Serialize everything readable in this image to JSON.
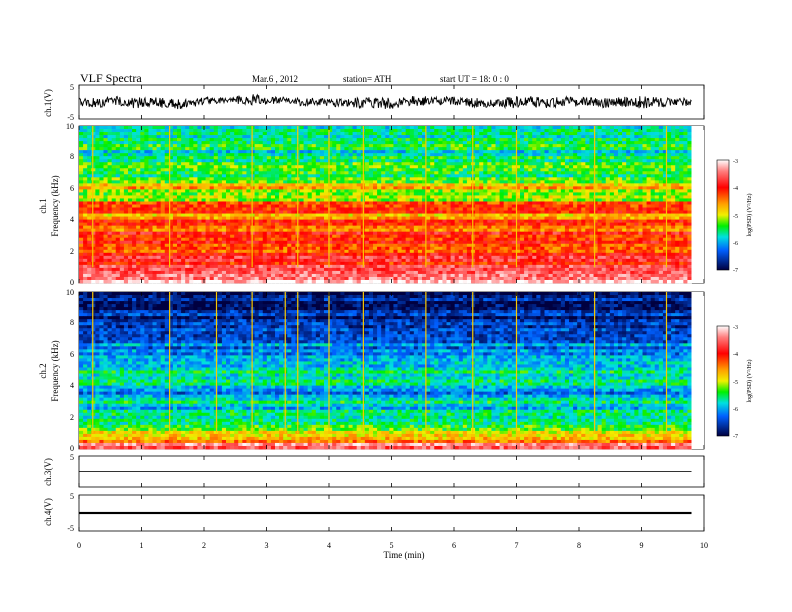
{
  "header": {
    "title": "VLF  Spectra",
    "date": "Mar.6  , 2012",
    "station": "station= ATH",
    "start": "start  UT  =    18: 0  : 0"
  },
  "chart_data": [
    {
      "type": "line",
      "panel": "ch1-waveform",
      "ylabel": "ch.1(V)",
      "ylim": [
        -5,
        5
      ],
      "yticks": [
        "5",
        "-5"
      ],
      "x_unit": "min",
      "xlim": [
        0,
        10
      ],
      "data_end": 9.8,
      "line_color": "#000000",
      "envelope_min_max": [
        [
          0.0,
          -1.2,
          1.4
        ],
        [
          0.3,
          -1.6,
          1.0
        ],
        [
          0.6,
          -1.0,
          1.6
        ],
        [
          0.9,
          -1.8,
          1.2
        ],
        [
          1.2,
          -1.2,
          1.3
        ],
        [
          1.5,
          -2.2,
          0.8
        ],
        [
          1.8,
          -1.6,
          0.6
        ],
        [
          2.1,
          -0.4,
          1.8
        ],
        [
          2.4,
          -0.2,
          1.2
        ],
        [
          2.7,
          -0.8,
          2.4
        ],
        [
          3.0,
          -0.6,
          1.6
        ],
        [
          3.3,
          -0.2,
          1.4
        ],
        [
          3.6,
          -1.2,
          1.0
        ],
        [
          3.9,
          -1.0,
          1.2
        ],
        [
          4.2,
          -1.4,
          0.8
        ],
        [
          4.5,
          -1.6,
          1.2
        ],
        [
          4.8,
          -2.0,
          1.6
        ],
        [
          5.1,
          -1.8,
          1.0
        ],
        [
          5.4,
          -1.2,
          1.8
        ],
        [
          5.7,
          -0.8,
          1.4
        ],
        [
          6.0,
          -1.0,
          1.6
        ],
        [
          6.3,
          -1.6,
          1.2
        ],
        [
          6.6,
          -1.4,
          1.0
        ],
        [
          6.9,
          -1.8,
          1.4
        ],
        [
          7.2,
          -1.2,
          1.6
        ],
        [
          7.5,
          -1.6,
          1.2
        ],
        [
          7.8,
          -1.4,
          1.4
        ],
        [
          8.1,
          -1.0,
          1.2
        ],
        [
          8.4,
          -1.6,
          1.0
        ],
        [
          8.7,
          -1.2,
          1.4
        ],
        [
          9.0,
          -1.8,
          1.6
        ],
        [
          9.3,
          -1.4,
          1.2
        ],
        [
          9.6,
          -1.0,
          1.0
        ],
        [
          9.8,
          -1.2,
          1.1
        ]
      ]
    },
    {
      "type": "heatmap",
      "panel": "ch1-spectrogram",
      "ylabel": "ch.1",
      "ylabel2": "Frequency  (kHz)",
      "xlabel": "",
      "x_unit": "min",
      "xlim": [
        0,
        10
      ],
      "data_end": 9.8,
      "ylim": [
        0,
        10
      ],
      "yticks": [
        "0",
        "2",
        "4",
        "6",
        "8",
        "10"
      ],
      "colorbar": {
        "label": "log(PSD) (V²/Hz)",
        "range": [
          -7,
          -3
        ],
        "ticks": [
          "-3",
          "-4",
          "-5",
          "-6",
          "-7"
        ]
      },
      "band_levels_logpsd_by_khz": [
        [
          0.2,
          -3.3
        ],
        [
          0.6,
          -3.4
        ],
        [
          1.0,
          -3.6
        ],
        [
          1.4,
          -4.0
        ],
        [
          1.8,
          -3.8
        ],
        [
          2.2,
          -4.3
        ],
        [
          2.6,
          -4.1
        ],
        [
          3.0,
          -4.0
        ],
        [
          3.4,
          -4.3
        ],
        [
          3.8,
          -4.2
        ],
        [
          4.2,
          -4.6
        ],
        [
          4.6,
          -4.1
        ],
        [
          5.0,
          -4.0
        ],
        [
          5.4,
          -5.0
        ],
        [
          5.8,
          -5.2
        ],
        [
          6.2,
          -4.8
        ],
        [
          6.6,
          -5.2
        ],
        [
          7.0,
          -5.6
        ],
        [
          7.4,
          -5.3
        ],
        [
          7.8,
          -5.5
        ],
        [
          8.2,
          -5.7
        ],
        [
          8.6,
          -5.4
        ],
        [
          9.0,
          -5.6
        ],
        [
          9.4,
          -5.5
        ],
        [
          9.8,
          -5.8
        ]
      ],
      "vertical_events_min": [
        0.22,
        1.45,
        2.77,
        3.5,
        4.0,
        4.55,
        5.55,
        6.3,
        7.0,
        8.25,
        9.4
      ]
    },
    {
      "type": "heatmap",
      "panel": "ch2-spectrogram",
      "ylabel": "ch.2",
      "ylabel2": "Frequency  (kHz)",
      "xlabel": "",
      "x_unit": "min",
      "xlim": [
        0,
        10
      ],
      "data_end": 9.8,
      "ylim": [
        0,
        10
      ],
      "yticks": [
        "0",
        "2",
        "4",
        "6",
        "8",
        "10"
      ],
      "colorbar": {
        "label": "log(PSD) (V²/Hz)",
        "range": [
          -7,
          -3
        ],
        "ticks": [
          "-3",
          "-4",
          "-5",
          "-6",
          "-7"
        ]
      },
      "band_levels_logpsd_by_khz": [
        [
          0.2,
          -3.6
        ],
        [
          0.6,
          -4.6
        ],
        [
          1.0,
          -5.0
        ],
        [
          1.4,
          -5.3
        ],
        [
          1.8,
          -5.6
        ],
        [
          2.2,
          -5.5
        ],
        [
          2.6,
          -5.8
        ],
        [
          3.0,
          -5.7
        ],
        [
          3.4,
          -6.2
        ],
        [
          3.8,
          -5.9
        ],
        [
          4.2,
          -5.8
        ],
        [
          4.6,
          -6.0
        ],
        [
          5.0,
          -5.7
        ],
        [
          5.4,
          -6.1
        ],
        [
          5.8,
          -6.0
        ],
        [
          6.2,
          -6.3
        ],
        [
          6.6,
          -6.2
        ],
        [
          7.0,
          -6.5
        ],
        [
          7.4,
          -6.6
        ],
        [
          7.8,
          -6.5
        ],
        [
          8.2,
          -6.7
        ],
        [
          8.6,
          -6.6
        ],
        [
          9.0,
          -6.8
        ],
        [
          9.4,
          -6.8
        ],
        [
          9.8,
          -6.9
        ]
      ],
      "vertical_events_min": [
        0.22,
        1.45,
        2.2,
        2.77,
        3.3,
        3.5,
        4.0,
        4.55,
        5.55,
        6.3,
        7.0,
        8.25,
        9.4
      ]
    },
    {
      "type": "line",
      "panel": "ch3-waveform",
      "ylabel": "ch.3(V)",
      "ylim": [
        -5,
        5
      ],
      "yticks": [
        "5"
      ],
      "x_unit": "min",
      "xlim": [
        0,
        10
      ],
      "data_end": 9.8,
      "line_color": "#000000",
      "level": 0.0,
      "amplitude": 0.1
    },
    {
      "type": "line",
      "panel": "ch4-waveform",
      "ylabel": "ch.4(V)",
      "xlabel": "Time  (min)",
      "ylim": [
        -5,
        5
      ],
      "yticks": [
        "5",
        "-5"
      ],
      "x_unit": "min",
      "xlim": [
        0,
        10
      ],
      "xticks": [
        "0",
        "1",
        "2",
        "3",
        "4",
        "5",
        "6",
        "7",
        "8",
        "9",
        "10"
      ],
      "data_end": 9.8,
      "line_color": "#000000",
      "level": 0.0,
      "amplitude": 0.3
    }
  ]
}
